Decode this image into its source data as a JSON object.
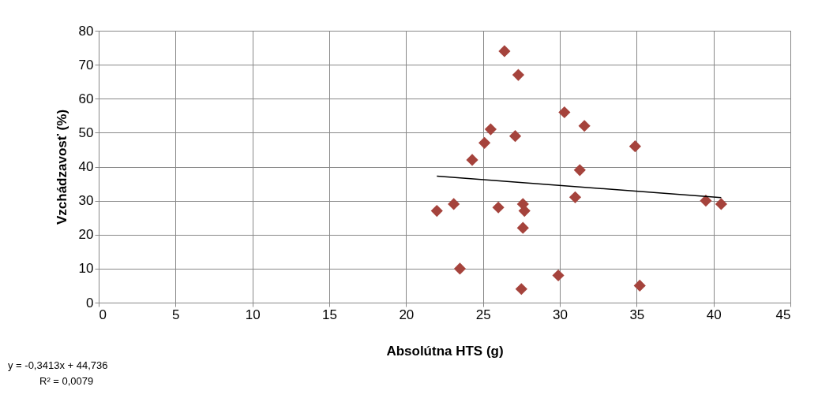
{
  "chart_data": {
    "type": "scatter",
    "xlabel": "Absolútna HTS (g)",
    "ylabel": "Vzchádzavosť (%)",
    "annotations": [
      "y = -0,3413x + 44,736",
      "R² = 0,0079"
    ],
    "series": [
      {
        "color": "#a5433c",
        "marker": "diamond",
        "x": [
          22.0,
          23.1,
          23.5,
          24.3,
          25.1,
          25.5,
          26.0,
          26.4,
          27.1,
          27.3,
          27.5,
          27.6,
          27.7,
          27.6,
          29.9,
          30.3,
          31.0,
          31.3,
          31.6,
          34.9,
          35.2,
          39.5,
          40.5
        ],
        "values": [
          27,
          29,
          10,
          42,
          47,
          51,
          28,
          74,
          49,
          67,
          4,
          29,
          27,
          22,
          8,
          56,
          31,
          39,
          52,
          46,
          5,
          30,
          29
        ]
      },
      {
        "type": "line",
        "color": "#000000",
        "x": [
          22.0,
          40.5
        ],
        "values": [
          37.2,
          30.9
        ]
      }
    ],
    "xlim": [
      0,
      45
    ],
    "xticks": [
      0,
      5,
      10,
      15,
      20,
      25,
      30,
      35,
      40,
      45
    ],
    "ylim": [
      0,
      80
    ],
    "yticks": [
      0,
      10,
      20,
      30,
      40,
      50,
      60,
      70,
      80
    ],
    "grid": true
  }
}
